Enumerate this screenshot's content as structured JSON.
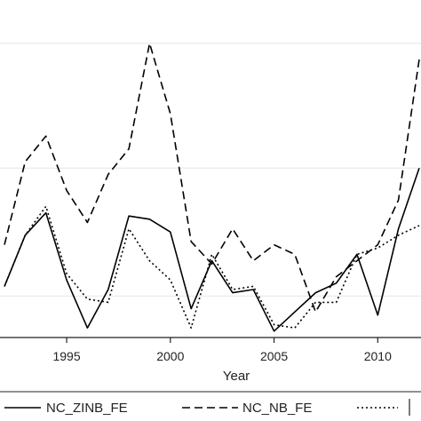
{
  "chart_data": {
    "type": "line",
    "xlabel": "Year",
    "ylabel": "",
    "title": "",
    "xlim": [
      1992,
      2012
    ],
    "ylim": [
      0,
      100
    ],
    "x_ticks": [
      1995,
      2000,
      2005,
      2010
    ],
    "x_tick_labels": [
      "1995",
      "2000",
      "2005",
      "2010"
    ],
    "y_gridlines": [
      13,
      53,
      92
    ],
    "grid": true,
    "legend_position": "bottom",
    "x": [
      1992,
      1993,
      1994,
      1995,
      1996,
      1997,
      1998,
      1999,
      2000,
      2001,
      2002,
      2003,
      2004,
      2005,
      2006,
      2007,
      2008,
      2009,
      2010,
      2011,
      2012
    ],
    "series": [
      {
        "name": "NC_ZINB_FE",
        "dash": "solid",
        "values": [
          16,
          32,
          39,
          18,
          3,
          15,
          38,
          37,
          33,
          9,
          24,
          14,
          15,
          2,
          8,
          14,
          17,
          26,
          7,
          34,
          53
        ]
      },
      {
        "name": "NC_NB_FE",
        "dash": "dashed",
        "values": [
          29,
          55,
          63,
          46,
          36,
          51,
          59,
          92,
          70,
          30,
          23,
          34,
          24,
          29,
          26,
          8,
          19,
          24,
          29,
          43,
          87
        ]
      },
      {
        "name": "",
        "dash": "dotted",
        "values": [
          16,
          32,
          41,
          20,
          12,
          11,
          34,
          24,
          18,
          3,
          26,
          15,
          16,
          4,
          3,
          11,
          11,
          26,
          28,
          32,
          35
        ]
      }
    ]
  }
}
